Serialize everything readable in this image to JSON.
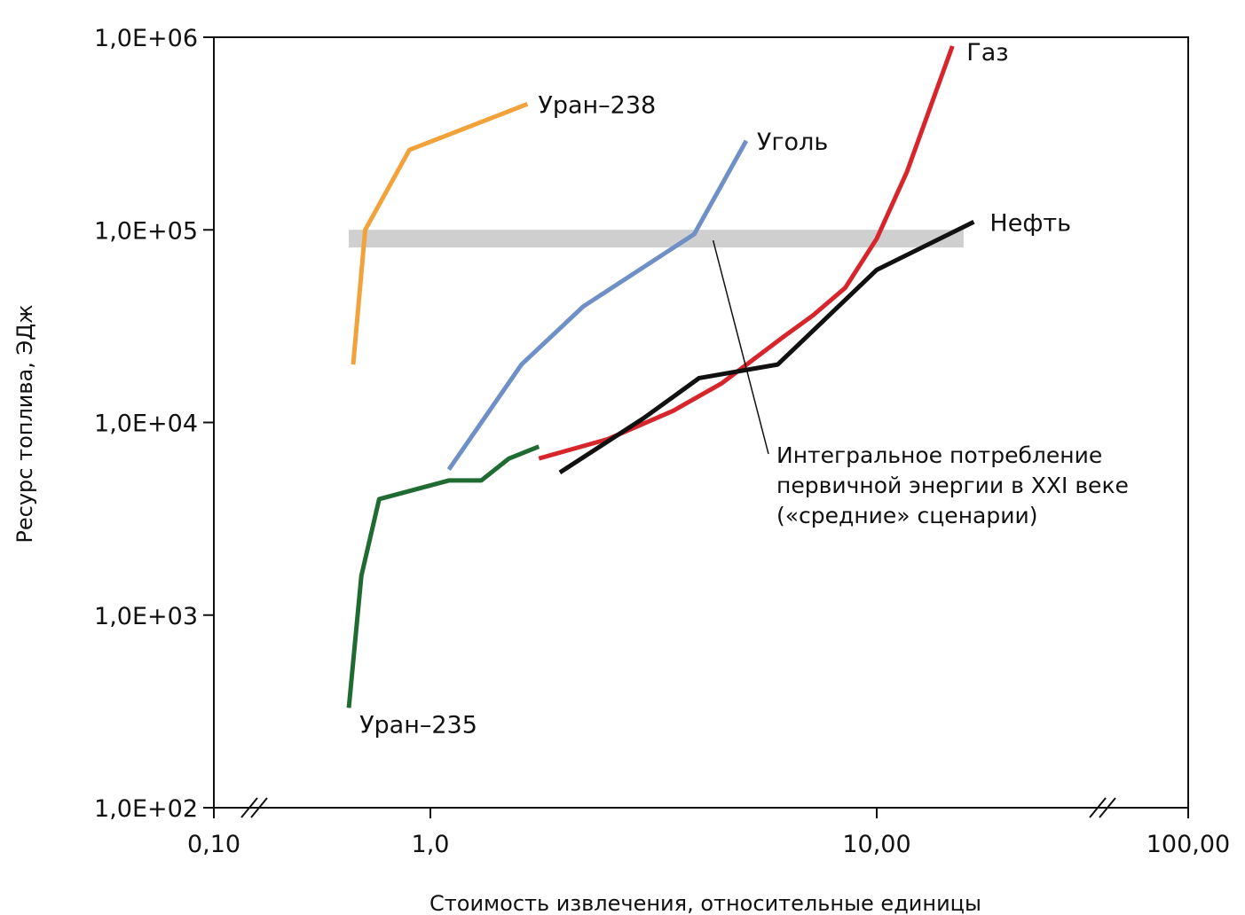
{
  "chart_data": {
    "type": "line",
    "title": "",
    "xlabel": "Стоимость извлечения, относительные единицы",
    "ylabel": "Ресурс топлива, ЭДж",
    "xscale": "log (broken axis)",
    "yscale": "log",
    "ylim": [
      100,
      1000000
    ],
    "xlim": [
      0.1,
      100
    ],
    "x_tick_labels": [
      "0,10",
      "1,0",
      "10,00",
      "100,00"
    ],
    "y_tick_labels": [
      "1,0E+02",
      "1,0E+03",
      "1,0E+04",
      "1,0E+05",
      "1,0E+06"
    ],
    "grid": false,
    "band": {
      "y": 90000,
      "x_from": 0.42,
      "x_to": 19,
      "color": "#cfcfcf",
      "annotation": [
        "Интегральное потребление",
        "первичной энергии в XXI веке",
        "(«средние» сценарии)"
      ],
      "pointer_x": 4.3
    },
    "series": [
      {
        "name": "Уран–238",
        "color": "#f2a23a",
        "points": [
          [
            0.44,
            20000
          ],
          [
            0.5,
            100000
          ],
          [
            0.8,
            260000
          ],
          [
            1.65,
            450000
          ]
        ]
      },
      {
        "name": "Уголь",
        "color": "#6f8fc7",
        "points": [
          [
            1.1,
            5700
          ],
          [
            1.6,
            20000
          ],
          [
            2.2,
            40000
          ],
          [
            3.9,
            95000
          ],
          [
            5.1,
            290000
          ]
        ]
      },
      {
        "name": "Уран–235",
        "color": "#1f6b32",
        "points": [
          [
            0.42,
            330
          ],
          [
            0.48,
            1600
          ],
          [
            0.58,
            4000
          ],
          [
            1.1,
            5000
          ],
          [
            1.3,
            5000
          ],
          [
            1.5,
            6500
          ],
          [
            1.75,
            7500
          ]
        ]
      },
      {
        "name": "Газ",
        "color": "#d7262b",
        "points": [
          [
            1.75,
            6500
          ],
          [
            2.5,
            8200
          ],
          [
            3.5,
            11500
          ],
          [
            4.5,
            16000
          ],
          [
            6.2,
            28000
          ],
          [
            7.2,
            36000
          ],
          [
            8.5,
            50000
          ],
          [
            10.0,
            90000
          ],
          [
            12.5,
            200000
          ],
          [
            17.5,
            900000
          ]
        ]
      },
      {
        "name": "Нефть",
        "color": "#111111",
        "points": [
          [
            1.95,
            5500
          ],
          [
            3.0,
            10500
          ],
          [
            4.0,
            17000
          ],
          [
            6.0,
            20000
          ],
          [
            10.0,
            62000
          ],
          [
            20.5,
            110000
          ]
        ]
      }
    ]
  }
}
